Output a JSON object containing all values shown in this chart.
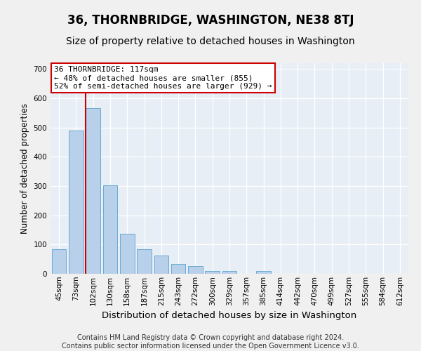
{
  "title": "36, THORNBRIDGE, WASHINGTON, NE38 8TJ",
  "subtitle": "Size of property relative to detached houses in Washington",
  "xlabel": "Distribution of detached houses by size in Washington",
  "ylabel": "Number of detached properties",
  "footer_line1": "Contains HM Land Registry data © Crown copyright and database right 2024.",
  "footer_line2": "Contains public sector information licensed under the Open Government Licence v3.0.",
  "categories": [
    "45sqm",
    "73sqm",
    "102sqm",
    "130sqm",
    "158sqm",
    "187sqm",
    "215sqm",
    "243sqm",
    "272sqm",
    "300sqm",
    "329sqm",
    "357sqm",
    "385sqm",
    "414sqm",
    "442sqm",
    "470sqm",
    "499sqm",
    "527sqm",
    "555sqm",
    "584sqm",
    "612sqm"
  ],
  "values": [
    83,
    490,
    567,
    303,
    137,
    85,
    63,
    33,
    27,
    10,
    10,
    0,
    10,
    0,
    0,
    0,
    0,
    0,
    0,
    0,
    0
  ],
  "bar_color": "#b8d0ea",
  "bar_edge_color": "#6aaad4",
  "vline_color": "#cc0000",
  "vline_x_index": 1.55,
  "annotation_line1": "36 THORNBRIDGE: 117sqm",
  "annotation_line2": "← 48% of detached houses are smaller (855)",
  "annotation_line3": "52% of semi-detached houses are larger (929) →",
  "annotation_box_facecolor": "#ffffff",
  "annotation_box_edgecolor": "#cc0000",
  "ylim": [
    0,
    720
  ],
  "yticks": [
    0,
    100,
    200,
    300,
    400,
    500,
    600,
    700
  ],
  "plot_bg_color": "#e8eef5",
  "grid_color": "#ffffff",
  "fig_bg_color": "#f0f0f0",
  "title_fontsize": 12,
  "subtitle_fontsize": 10,
  "xlabel_fontsize": 9.5,
  "ylabel_fontsize": 8.5,
  "tick_fontsize": 7.5,
  "annotation_fontsize": 8,
  "footer_fontsize": 7
}
